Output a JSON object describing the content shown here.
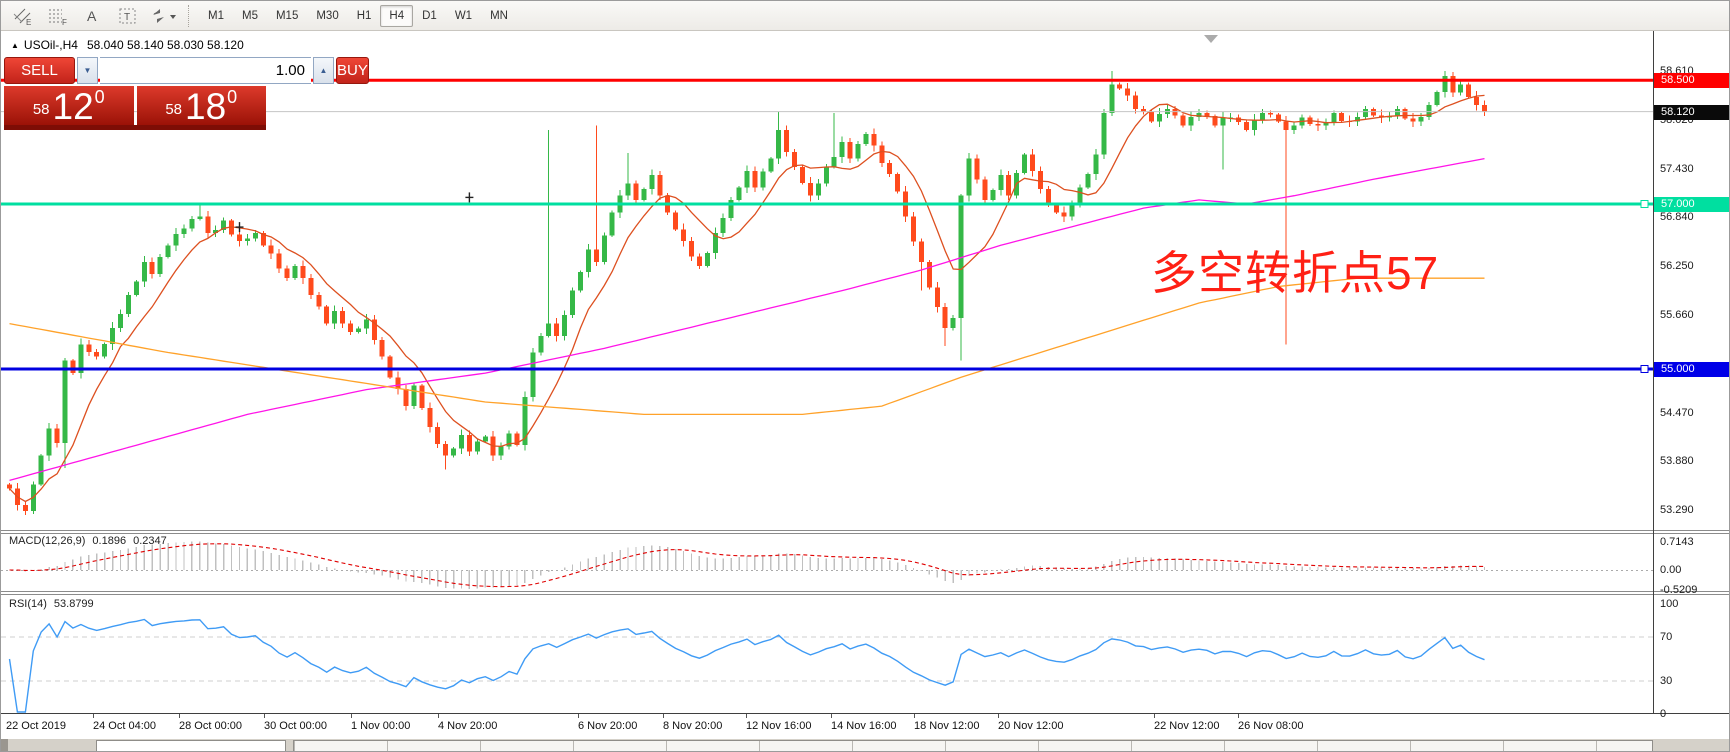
{
  "toolbar": {
    "tools": [
      {
        "name": "equidistant-channel-tool",
        "label": "E"
      },
      {
        "name": "fibonacci-retracement-tool",
        "label": "F"
      },
      {
        "name": "text-tool",
        "label": "A"
      },
      {
        "name": "text-label-tool",
        "label": "T"
      },
      {
        "name": "arrow-objects-tool",
        "label": ""
      }
    ],
    "timeframes": [
      "M1",
      "M5",
      "M15",
      "M30",
      "H1",
      "H4",
      "D1",
      "W1",
      "MN"
    ],
    "active_timeframe": "H4"
  },
  "symbol_bar": {
    "symbol": "USOil-,H4",
    "ohlc": "58.040 58.140 58.030 58.120"
  },
  "trade_widget": {
    "sell_label": "SELL",
    "buy_label": "BUY",
    "volume": "1.00",
    "sell_small": "58",
    "sell_big": "12",
    "sell_sup": "0",
    "buy_small": "58",
    "buy_big": "18",
    "buy_sup": "0"
  },
  "annotation": {
    "text": "多空转折点57",
    "color": "#ff2015"
  },
  "price_axis": {
    "ticks": [
      {
        "label": "58.610",
        "price": 58.61
      },
      {
        "label": "58.020",
        "price": 58.02
      },
      {
        "label": "57.430",
        "price": 57.43
      },
      {
        "label": "56.840",
        "price": 56.84
      },
      {
        "label": "56.250",
        "price": 56.25
      },
      {
        "label": "55.660",
        "price": 55.66
      },
      {
        "label": "54.470",
        "price": 54.47
      },
      {
        "label": "53.880",
        "price": 53.88
      },
      {
        "label": "53.290",
        "price": 53.29
      }
    ],
    "badges": [
      {
        "label": "58.500",
        "price": 58.5,
        "bg": "#ff0000"
      },
      {
        "label": "58.120",
        "price": 58.12,
        "bg": "#0a0a0a"
      },
      {
        "label": "57.000",
        "price": 57.0,
        "bg": "#00dfa0"
      },
      {
        "label": "55.000",
        "price": 55.0,
        "bg": "#0000e8"
      }
    ]
  },
  "indicators": {
    "macd": {
      "label": "MACD(12,26,9)",
      "main_value": "0.1896",
      "signal_value": "0.2347",
      "axis_labels": [
        {
          "text": "0.7143",
          "value": 0.7143
        },
        {
          "text": "0.00",
          "value": 0.0
        },
        {
          "text": "-0.5209",
          "value": -0.5209
        }
      ]
    },
    "rsi": {
      "label": "RSI(14)",
      "value": "53.8799",
      "axis_labels": [
        {
          "text": "100",
          "value": 100
        },
        {
          "text": "70",
          "value": 70
        },
        {
          "text": "30",
          "value": 30
        },
        {
          "text": "0",
          "value": 0
        }
      ],
      "levels": [
        70,
        30
      ]
    }
  },
  "time_axis": {
    "labels": [
      "22 Oct 2019",
      "24 Oct 04:00",
      "28 Oct 00:00",
      "30 Oct 00:00",
      "1 Nov 00:00",
      "4 Nov 20:00",
      "6 Nov 20:00",
      "8 Nov 20:00",
      "12 Nov 16:00",
      "14 Nov 16:00",
      "18 Nov 12:00",
      "20 Nov 12:00",
      "22 Nov 12:00",
      "26 Nov 08:00"
    ]
  },
  "chart_data": {
    "type": "candlestick",
    "title": "USOil-,H4",
    "bars": 187,
    "first_open": 53.6,
    "y_axis_range": [
      53.1,
      58.96
    ],
    "up_color": "#35b847",
    "down_color": "#ff4a1c",
    "close_anchors": [
      [
        0,
        53.55
      ],
      [
        1,
        53.35
      ],
      [
        2,
        53.28
      ],
      [
        3,
        53.6
      ],
      [
        4,
        53.95
      ],
      [
        5,
        54.28
      ],
      [
        6,
        54.1
      ],
      [
        7,
        55.1
      ],
      [
        8,
        54.95
      ],
      [
        9,
        55.3
      ],
      [
        11,
        55.15
      ],
      [
        13,
        55.5
      ],
      [
        15,
        55.9
      ],
      [
        17,
        56.3
      ],
      [
        18,
        56.15
      ],
      [
        20,
        56.5
      ],
      [
        22,
        56.7
      ],
      [
        24,
        56.85
      ],
      [
        25,
        56.65
      ],
      [
        27,
        56.8
      ],
      [
        29,
        56.55
      ],
      [
        31,
        56.65
      ],
      [
        33,
        56.4
      ],
      [
        35,
        56.1
      ],
      [
        36,
        56.25
      ],
      [
        38,
        55.9
      ],
      [
        40,
        55.55
      ],
      [
        41,
        55.7
      ],
      [
        43,
        55.45
      ],
      [
        45,
        55.6
      ],
      [
        46,
        55.35
      ],
      [
        48,
        54.9
      ],
      [
        50,
        54.55
      ],
      [
        51,
        54.8
      ],
      [
        53,
        54.3
      ],
      [
        55,
        53.95
      ],
      [
        57,
        54.2
      ],
      [
        58,
        54.0
      ],
      [
        60,
        54.18
      ],
      [
        61,
        53.95
      ],
      [
        63,
        54.22
      ],
      [
        64,
        54.08
      ],
      [
        66,
        55.2
      ],
      [
        68,
        55.55
      ],
      [
        69,
        55.4
      ],
      [
        71,
        55.95
      ],
      [
        73,
        56.45
      ],
      [
        74,
        56.3
      ],
      [
        76,
        56.9
      ],
      [
        78,
        57.25
      ],
      [
        79,
        57.05
      ],
      [
        81,
        57.35
      ],
      [
        83,
        56.9
      ],
      [
        85,
        56.55
      ],
      [
        87,
        56.25
      ],
      [
        89,
        56.65
      ],
      [
        91,
        57.05
      ],
      [
        93,
        57.4
      ],
      [
        94,
        57.2
      ],
      [
        96,
        57.55
      ],
      [
        97,
        57.9
      ],
      [
        99,
        57.45
      ],
      [
        101,
        57.1
      ],
      [
        103,
        57.45
      ],
      [
        105,
        57.75
      ],
      [
        106,
        57.55
      ],
      [
        108,
        57.85
      ],
      [
        110,
        57.5
      ],
      [
        112,
        57.15
      ],
      [
        113,
        56.85
      ],
      [
        115,
        56.3
      ],
      [
        117,
        55.75
      ],
      [
        118,
        55.5
      ],
      [
        119,
        55.62
      ],
      [
        120,
        57.1
      ],
      [
        121,
        57.55
      ],
      [
        122,
        57.3
      ],
      [
        123,
        57.05
      ],
      [
        125,
        57.35
      ],
      [
        126,
        57.1
      ],
      [
        128,
        57.6
      ],
      [
        129,
        57.4
      ],
      [
        131,
        57.0
      ],
      [
        133,
        56.85
      ],
      [
        135,
        57.2
      ],
      [
        137,
        57.6
      ],
      [
        138,
        58.1
      ],
      [
        139,
        58.45
      ],
      [
        140,
        58.4
      ],
      [
        142,
        58.15
      ],
      [
        144,
        58.0
      ],
      [
        146,
        58.15
      ],
      [
        148,
        57.95
      ],
      [
        150,
        58.1
      ],
      [
        152,
        57.95
      ],
      [
        154,
        58.05
      ],
      [
        156,
        57.9
      ],
      [
        158,
        58.1
      ],
      [
        160,
        58.0
      ],
      [
        161,
        57.9
      ],
      [
        163,
        58.05
      ],
      [
        165,
        57.95
      ],
      [
        167,
        58.1
      ],
      [
        169,
        58.0
      ],
      [
        171,
        58.15
      ],
      [
        173,
        58.05
      ],
      [
        175,
        58.15
      ],
      [
        177,
        58.0
      ],
      [
        179,
        58.2
      ],
      [
        181,
        58.55
      ],
      [
        182,
        58.35
      ],
      [
        183,
        58.45
      ],
      [
        184,
        58.3
      ],
      [
        185,
        58.2
      ],
      [
        186,
        58.12
      ]
    ],
    "wick_overrides": [
      {
        "i": 7,
        "low": 53.8
      },
      {
        "i": 24,
        "high": 57.02
      },
      {
        "i": 55,
        "low": 53.78
      },
      {
        "i": 68,
        "high": 57.9
      },
      {
        "i": 74,
        "high": 57.95
      },
      {
        "i": 78,
        "high": 57.62
      },
      {
        "i": 97,
        "high": 58.12
      },
      {
        "i": 104,
        "high": 58.1
      },
      {
        "i": 115,
        "low": 55.95
      },
      {
        "i": 118,
        "low": 55.28
      },
      {
        "i": 120,
        "low": 55.1
      },
      {
        "i": 139,
        "high": 58.61
      },
      {
        "i": 153,
        "low": 57.42
      },
      {
        "i": 161,
        "low": 55.3
      },
      {
        "i": 181,
        "high": 58.61
      }
    ],
    "hlines": [
      {
        "name": "resistance-58500",
        "price": 58.5,
        "color": "#ff0000",
        "width": 3,
        "handle": false
      },
      {
        "name": "level-57000",
        "price": 57.0,
        "color": "#00dfa0",
        "width": 3,
        "handle": true
      },
      {
        "name": "support-55000",
        "price": 55.0,
        "color": "#0000e0",
        "width": 3,
        "handle": true
      },
      {
        "name": "current-price-58120",
        "price": 58.12,
        "color": "#c4c4c4",
        "width": 1,
        "handle": false
      }
    ],
    "ma_lines": [
      {
        "name": "ma-fast",
        "type": "sma",
        "period": 8,
        "color": "#dd5020"
      },
      {
        "name": "ma-medium",
        "type": "anchors",
        "color": "#ff14e8",
        "anchors": [
          [
            0,
            53.65
          ],
          [
            15,
            54.05
          ],
          [
            30,
            54.45
          ],
          [
            45,
            54.75
          ],
          [
            60,
            54.95
          ],
          [
            75,
            55.25
          ],
          [
            90,
            55.6
          ],
          [
            105,
            55.95
          ],
          [
            115,
            56.2
          ],
          [
            125,
            56.5
          ],
          [
            135,
            56.75
          ],
          [
            143,
            56.95
          ],
          [
            150,
            57.05
          ],
          [
            156,
            57.0
          ],
          [
            162,
            57.1
          ],
          [
            172,
            57.3
          ],
          [
            186,
            57.55
          ]
        ]
      },
      {
        "name": "ma-slow",
        "type": "anchors",
        "color": "#ffa22a",
        "anchors": [
          [
            0,
            55.55
          ],
          [
            20,
            55.2
          ],
          [
            40,
            54.9
          ],
          [
            60,
            54.6
          ],
          [
            80,
            54.45
          ],
          [
            100,
            54.45
          ],
          [
            110,
            54.55
          ],
          [
            120,
            54.9
          ],
          [
            130,
            55.2
          ],
          [
            140,
            55.5
          ],
          [
            150,
            55.8
          ],
          [
            160,
            56.0
          ],
          [
            170,
            56.1
          ],
          [
            186,
            56.1
          ]
        ]
      }
    ],
    "macd": {
      "fast": 12,
      "slow": 26,
      "signal": 9,
      "hist_color": "#c0c0c0",
      "signal_color": "#e00000",
      "y_range": [
        -0.5209,
        0.7143
      ]
    },
    "rsi": {
      "period": 14,
      "color": "#3f9bf5",
      "levels": [
        70,
        30
      ]
    },
    "markers": [
      {
        "type": "cross",
        "bar": 29,
        "price": 56.72
      },
      {
        "type": "cross",
        "bar": 58,
        "price": 57.08
      }
    ]
  }
}
